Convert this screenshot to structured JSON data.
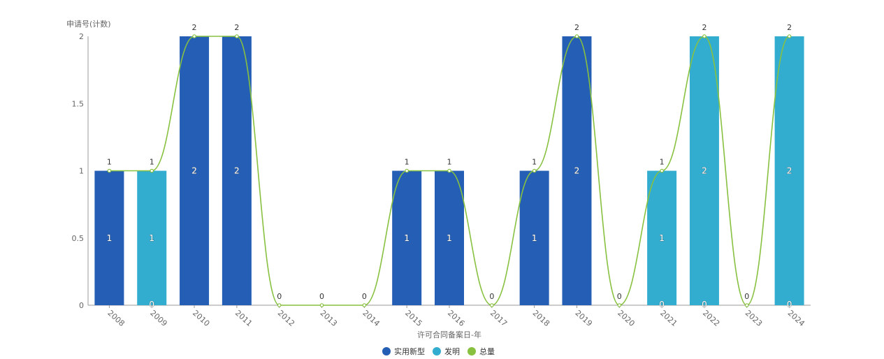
{
  "chart_data": {
    "type": "bar",
    "stacked": true,
    "categories": [
      "2008",
      "2009",
      "2010",
      "2011",
      "2012",
      "2013",
      "2014",
      "2015",
      "2016",
      "2017",
      "2018",
      "2019",
      "2020",
      "2021",
      "2022",
      "2023",
      "2024"
    ],
    "series": [
      {
        "name": "实用新型",
        "type": "bar",
        "color": "#255FB5",
        "values": [
          1,
          0,
          2,
          2,
          0,
          0,
          0,
          1,
          1,
          0,
          1,
          2,
          0,
          0,
          0,
          0,
          0
        ]
      },
      {
        "name": "发明",
        "type": "bar",
        "color": "#33ADCF",
        "values": [
          0,
          1,
          0,
          0,
          0,
          0,
          0,
          0,
          0,
          0,
          0,
          0,
          0,
          1,
          2,
          0,
          2
        ]
      },
      {
        "name": "总量",
        "type": "line",
        "color": "#88C140",
        "values": [
          1,
          1,
          2,
          2,
          0,
          0,
          0,
          1,
          1,
          0,
          1,
          2,
          0,
          1,
          2,
          0,
          2
        ]
      }
    ],
    "ylabel": "申请号(计数)",
    "xlabel": "许可合同备案日-年",
    "ylim": [
      0,
      2
    ],
    "yticks": [
      "0",
      "0.5",
      "1",
      "1.5",
      "2"
    ],
    "grid": false,
    "legend": "bottom-center"
  }
}
